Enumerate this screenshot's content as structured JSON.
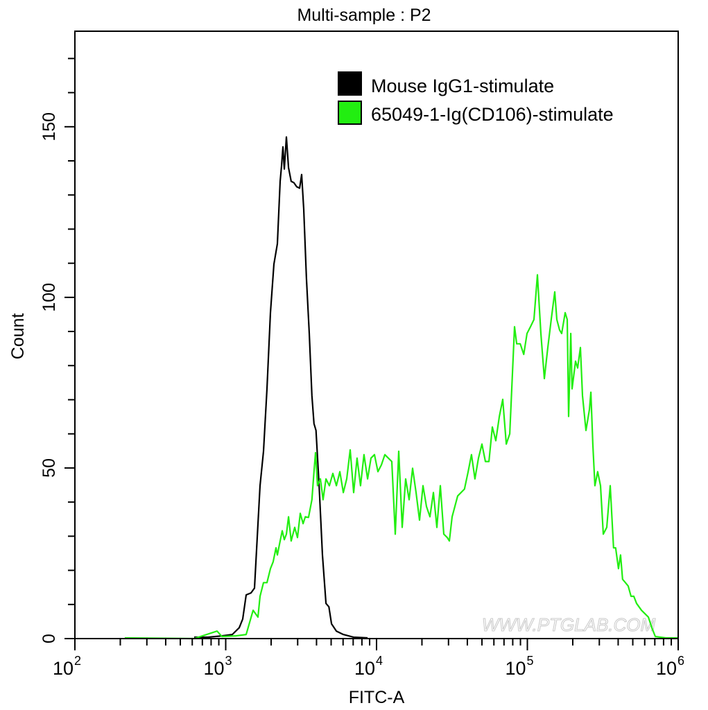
{
  "chart_data": {
    "type": "line",
    "title": "Multi-sample : P2",
    "xlabel": "FITC-A",
    "ylabel": "Count",
    "xscale": "log",
    "xlim": [
      100,
      1000000
    ],
    "ylim": [
      0,
      178
    ],
    "x_ticks": [
      {
        "value": 100,
        "base": "10",
        "exp": "2"
      },
      {
        "value": 1000,
        "base": "10",
        "exp": "3"
      },
      {
        "value": 10000,
        "base": "10",
        "exp": "4"
      },
      {
        "value": 100000,
        "base": "10",
        "exp": "5"
      },
      {
        "value": 1000000,
        "base": "10",
        "exp": "6"
      }
    ],
    "y_ticks": [
      0,
      50,
      100,
      150
    ],
    "y_minor_step": 10,
    "grid": false,
    "legend_position": "top-right",
    "watermark": "WWW.PTGLAB.COM",
    "series": [
      {
        "name": "Mouse IgG1-stimulate",
        "color": "#000000",
        "x": [
          618,
          764,
          943,
          1106,
          1229,
          1296,
          1367,
          1471,
          1552,
          1689,
          1781,
          1878,
          1980,
          2088,
          2200,
          2295,
          2345,
          2396,
          2447,
          2524,
          2610,
          2718,
          2830,
          2958,
          3090,
          3188,
          3290,
          3430,
          3580,
          3730,
          3850,
          3970,
          4160,
          4380,
          4620,
          4830,
          5030,
          5420,
          6020,
          7050,
          8720
        ],
        "y": [
          0.4,
          0.4,
          0.8,
          1.2,
          3.2,
          5.7,
          12.8,
          13.4,
          14.8,
          44.8,
          54.9,
          73.2,
          95.5,
          109.7,
          115.7,
          134,
          138.5,
          144.1,
          137.6,
          147,
          138,
          134,
          133.6,
          132.4,
          132,
          136,
          125.9,
          105.6,
          89.4,
          71.2,
          63,
          61,
          44.8,
          24.5,
          10.3,
          9.3,
          4.3,
          2.2,
          1.2,
          0.4,
          0.2
        ]
      },
      {
        "name": "65049-1-Ig(CD106)-stimulate",
        "color": "#22ee11",
        "x": [
          214,
          618,
          876,
          943,
          1166,
          1367,
          1519,
          1636,
          1689,
          1781,
          1878,
          1980,
          2064,
          2154,
          2200,
          2272,
          2371,
          2447,
          2524,
          2610,
          2718,
          2866,
          2990,
          3120,
          3260,
          3370,
          3540,
          3730,
          3850,
          3940,
          4060,
          4240,
          4420,
          4620,
          4870,
          5130,
          5420,
          5710,
          6020,
          6340,
          6690,
          7050,
          7430,
          7830,
          8260,
          8720,
          9190,
          9690,
          10210,
          10770,
          11350,
          11970,
          12620,
          13310,
          14030,
          14790,
          15600,
          16450,
          17340,
          18280,
          19280,
          20330,
          21430,
          22600,
          23830,
          25120,
          26490,
          27930,
          29450,
          30400,
          31700,
          34500,
          38300,
          40500,
          42600,
          44900,
          47400,
          50000,
          52700,
          55600,
          58600,
          61800,
          65200,
          68700,
          72500,
          76400,
          82200,
          85000,
          89700,
          94600,
          99500,
          104900,
          110600,
          116600,
          122900,
          129600,
          136700,
          144000,
          151900,
          156800,
          163600,
          168900,
          178100,
          183800,
          187800,
          194000,
          198000,
          208800,
          215400,
          224800,
          232100,
          244700,
          258000,
          263600,
          271800,
          280500,
          292600,
          305500,
          318800,
          336000,
          354300,
          373000,
          385000,
          402000,
          415000,
          428000,
          447000,
          466000,
          487000,
          508000,
          530000,
          571000,
          634000,
          669000,
          705000,
          826000,
          1000000
        ],
        "y": [
          0.2,
          0,
          2.2,
          0.6,
          0.8,
          1.2,
          8.3,
          6.3,
          12.4,
          16.4,
          16.4,
          20.5,
          22.5,
          26.6,
          24.5,
          27.6,
          31.6,
          29,
          30.6,
          35.7,
          28.6,
          32.6,
          29.6,
          36.7,
          33.7,
          35.7,
          35.5,
          40.7,
          48.9,
          54.5,
          44.8,
          46.8,
          40.7,
          46.8,
          44.8,
          48.4,
          44.8,
          48.9,
          42.8,
          46.8,
          55.3,
          42.8,
          52.9,
          44.8,
          53.9,
          46.8,
          52.9,
          53.9,
          48.9,
          50.9,
          53.9,
          52.9,
          51.9,
          30.6,
          54.9,
          32.6,
          46.8,
          40.7,
          49.9,
          42.8,
          34.7,
          44.8,
          38.7,
          35.7,
          42.8,
          32.6,
          44.8,
          30.6,
          29.6,
          28.6,
          35.7,
          41.8,
          43.8,
          48.9,
          53.9,
          46.8,
          52.9,
          57,
          51.9,
          51.9,
          62,
          58,
          65.1,
          70.1,
          57,
          60,
          91.4,
          86.4,
          86.4,
          83.3,
          89.4,
          91.4,
          93.5,
          106.6,
          89.4,
          76.2,
          85.3,
          93.5,
          101.6,
          93.5,
          90.4,
          89.4,
          95.5,
          93.5,
          65.1,
          89.4,
          73.2,
          81.3,
          79.3,
          85.3,
          71.2,
          61,
          67.1,
          72.2,
          57,
          44.8,
          48.9,
          44.8,
          30.6,
          32.6,
          44.8,
          26.6,
          26.6,
          20.5,
          24.5,
          17.4,
          16.4,
          15.4,
          12.4,
          12.4,
          10.3,
          8.3,
          6.3,
          3.2,
          0.6,
          0.2,
          0.2
        ]
      }
    ]
  }
}
